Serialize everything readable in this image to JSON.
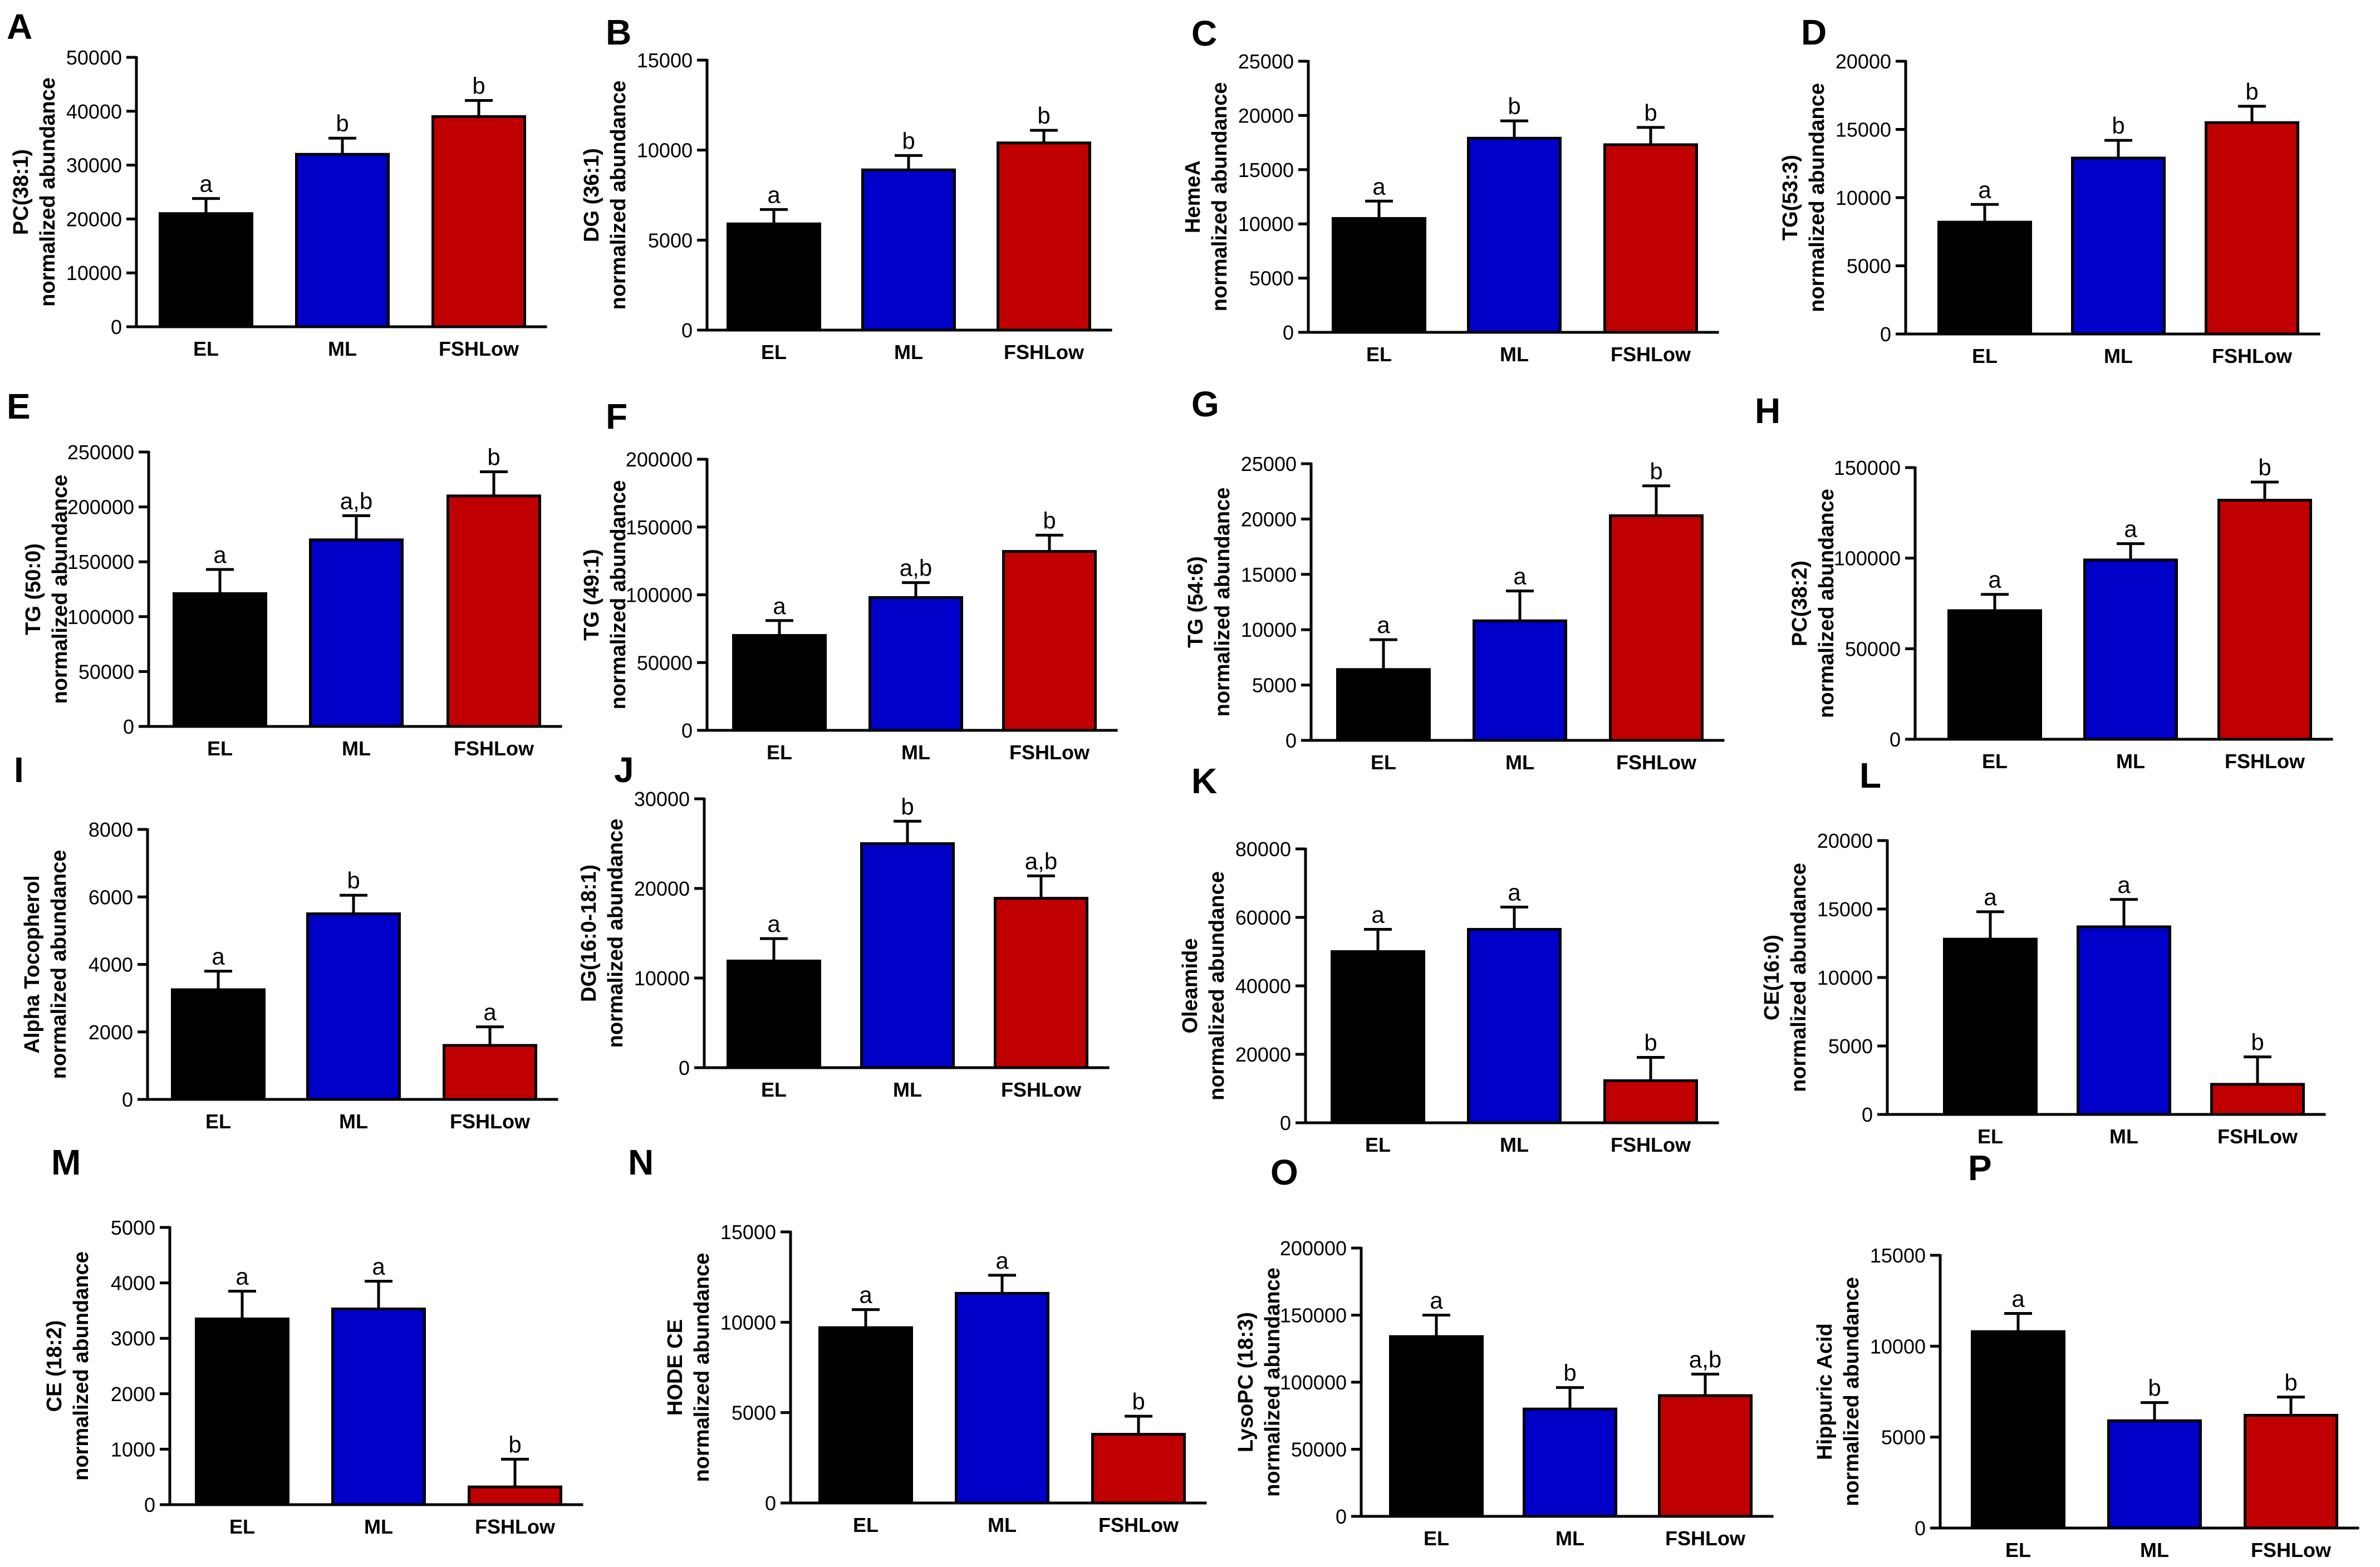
{
  "colors": {
    "EL": "#000000",
    "ML": "#0000c8",
    "FSHLow": "#c00000"
  },
  "chart_data": [
    {
      "panel": "A",
      "type": "bar",
      "ylabel": [
        "PC(38:1)",
        "normalized abundance"
      ],
      "categories": [
        "EL",
        "ML",
        "FSHLow"
      ],
      "values": [
        21000,
        32000,
        39000
      ],
      "errors": [
        2800,
        3000,
        3000
      ],
      "sig": [
        "a",
        "b",
        "b"
      ],
      "ylim": [
        0,
        50000
      ],
      "ticks": [
        "0",
        "10000",
        "20000",
        "30000",
        "40000",
        "50000"
      ]
    },
    {
      "panel": "B",
      "type": "bar",
      "ylabel": [
        "DG (36:1)",
        "normalized abundance"
      ],
      "categories": [
        "EL",
        "ML",
        "FSHLow"
      ],
      "values": [
        5900,
        8900,
        10400
      ],
      "errors": [
        800,
        800,
        700
      ],
      "sig": [
        "a",
        "b",
        "b"
      ],
      "ylim": [
        0,
        15000
      ],
      "ticks": [
        "0",
        "5000",
        "10000",
        "15000"
      ]
    },
    {
      "panel": "C",
      "type": "bar",
      "ylabel": [
        "HemeA",
        "normalized abundance"
      ],
      "categories": [
        "EL",
        "ML",
        "FSHLow"
      ],
      "values": [
        10500,
        17900,
        17300
      ],
      "errors": [
        1600,
        1600,
        1600
      ],
      "sig": [
        "a",
        "b",
        "b"
      ],
      "ylim": [
        0,
        25000
      ],
      "ticks": [
        "0",
        "5000",
        "10000",
        "15000",
        "20000",
        "25000"
      ]
    },
    {
      "panel": "D",
      "type": "bar",
      "ylabel": [
        "TG(53:3)",
        "normalized abundance"
      ],
      "categories": [
        "EL",
        "ML",
        "FSHLow"
      ],
      "values": [
        8200,
        12900,
        15500
      ],
      "errors": [
        1300,
        1300,
        1200
      ],
      "sig": [
        "a",
        "b",
        "b"
      ],
      "ylim": [
        0,
        20000
      ],
      "ticks": [
        "0",
        "5000",
        "10000",
        "15000",
        "20000"
      ]
    },
    {
      "panel": "E",
      "type": "bar",
      "ylabel": [
        "TG (50:0)",
        "normalized abundance"
      ],
      "categories": [
        "EL",
        "ML",
        "FSHLow"
      ],
      "values": [
        121000,
        170000,
        210000
      ],
      "errors": [
        22000,
        22000,
        22000
      ],
      "sig": [
        "a",
        "a,b",
        "b"
      ],
      "ylim": [
        0,
        250000
      ],
      "ticks": [
        "0",
        "50000",
        "100000",
        "150000",
        "200000",
        "250000"
      ]
    },
    {
      "panel": "F",
      "type": "bar",
      "ylabel": [
        "TG (49:1)",
        "normalized abundance"
      ],
      "categories": [
        "EL",
        "ML",
        "FSHLow"
      ],
      "values": [
        70000,
        98000,
        132000
      ],
      "errors": [
        11000,
        11000,
        12000
      ],
      "sig": [
        "a",
        "a,b",
        "b"
      ],
      "ylim": [
        0,
        200000
      ],
      "ticks": [
        "0",
        "50000",
        "100000",
        "150000",
        "200000"
      ]
    },
    {
      "panel": "G",
      "type": "bar",
      "ylabel": [
        "TG (54:6)",
        "normalized abundance"
      ],
      "categories": [
        "EL",
        "ML",
        "FSHLow"
      ],
      "values": [
        6400,
        10800,
        20300
      ],
      "errors": [
        2700,
        2700,
        2700
      ],
      "sig": [
        "a",
        "a",
        "b"
      ],
      "ylim": [
        0,
        25000
      ],
      "ticks": [
        "0",
        "5000",
        "10000",
        "15000",
        "20000",
        "25000"
      ]
    },
    {
      "panel": "H",
      "type": "bar",
      "ylabel": [
        "PC(38:2)",
        "normalized abundance"
      ],
      "categories": [
        "EL",
        "ML",
        "FSHLow"
      ],
      "values": [
        71000,
        99000,
        132000
      ],
      "errors": [
        9000,
        9000,
        10000
      ],
      "sig": [
        "a",
        "a",
        "b"
      ],
      "ylim": [
        0,
        150000
      ],
      "ticks": [
        "0",
        "50000",
        "100000",
        "150000"
      ]
    },
    {
      "panel": "I",
      "type": "bar",
      "ylabel": [
        "Alpha Tocopherol",
        "normalized abundance"
      ],
      "categories": [
        "EL",
        "ML",
        "FSHLow"
      ],
      "values": [
        3250,
        5500,
        1600
      ],
      "errors": [
        550,
        550,
        550
      ],
      "sig": [
        "a",
        "b",
        "a"
      ],
      "ylim": [
        0,
        8000
      ],
      "ticks": [
        "0",
        "2000",
        "4000",
        "6000",
        "8000"
      ]
    },
    {
      "panel": "J",
      "type": "bar",
      "ylabel": [
        "DG(16:0-18:1)",
        "normalized abundance"
      ],
      "categories": [
        "EL",
        "ML",
        "FSHLow"
      ],
      "values": [
        11900,
        25000,
        18900
      ],
      "errors": [
        2500,
        2500,
        2500
      ],
      "sig": [
        "a",
        "b",
        "a,b"
      ],
      "ylim": [
        0,
        30000
      ],
      "ticks": [
        "0",
        "10000",
        "20000",
        "30000"
      ]
    },
    {
      "panel": "K",
      "type": "bar",
      "ylabel": [
        "Oleamide",
        "normalized abundance"
      ],
      "categories": [
        "EL",
        "ML",
        "FSHLow"
      ],
      "values": [
        50000,
        56500,
        12300
      ],
      "errors": [
        6500,
        6500,
        6800
      ],
      "sig": [
        "a",
        "a",
        "b"
      ],
      "ylim": [
        0,
        80000
      ],
      "ticks": [
        "0",
        "20000",
        "40000",
        "60000",
        "80000"
      ]
    },
    {
      "panel": "L",
      "type": "bar",
      "ylabel": [
        "CE(16:0)",
        "normalized abundance"
      ],
      "categories": [
        "EL",
        "ML",
        "FSHLow"
      ],
      "values": [
        12800,
        13700,
        2200
      ],
      "errors": [
        2000,
        2000,
        2000
      ],
      "sig": [
        "a",
        "a",
        "b"
      ],
      "ylim": [
        0,
        20000
      ],
      "ticks": [
        "0",
        "5000",
        "10000",
        "15000",
        "20000"
      ]
    },
    {
      "panel": "M",
      "type": "bar",
      "ylabel": [
        "CE (18:2)",
        "normalized abundance"
      ],
      "categories": [
        "EL",
        "ML",
        "FSHLow"
      ],
      "values": [
        3350,
        3530,
        320
      ],
      "errors": [
        500,
        500,
        500
      ],
      "sig": [
        "a",
        "a",
        "b"
      ],
      "ylim": [
        0,
        5000
      ],
      "ticks": [
        "0",
        "1000",
        "2000",
        "3000",
        "4000",
        "5000"
      ]
    },
    {
      "panel": "N",
      "type": "bar",
      "ylabel": [
        "HODE CE",
        "normalized abundance"
      ],
      "categories": [
        "EL",
        "ML",
        "FSHLow"
      ],
      "values": [
        9700,
        11600,
        3800
      ],
      "errors": [
        1000,
        1000,
        1000
      ],
      "sig": [
        "a",
        "a",
        "b"
      ],
      "ylim": [
        0,
        15000
      ],
      "ticks": [
        "0",
        "5000",
        "10000",
        "15000"
      ]
    },
    {
      "panel": "O",
      "type": "bar",
      "ylabel": [
        "LysoPC (18:3)",
        "normalized abundance"
      ],
      "categories": [
        "EL",
        "ML",
        "FSHLow"
      ],
      "values": [
        134000,
        80000,
        90000
      ],
      "errors": [
        16000,
        16000,
        16000
      ],
      "sig": [
        "a",
        "b",
        "a,b"
      ],
      "ylim": [
        0,
        200000
      ],
      "ticks": [
        "0",
        "50000",
        "100000",
        "150000",
        "200000"
      ]
    },
    {
      "panel": "P",
      "type": "bar",
      "ylabel": [
        "Hippuric Acid",
        "normalized abundance"
      ],
      "categories": [
        "EL",
        "ML",
        "FSHLow"
      ],
      "values": [
        10800,
        5900,
        6200
      ],
      "errors": [
        1000,
        1000,
        1000
      ],
      "sig": [
        "a",
        "b",
        "b"
      ],
      "ylim": [
        0,
        15000
      ],
      "ticks": [
        "0",
        "5000",
        "10000",
        "15000"
      ]
    }
  ]
}
